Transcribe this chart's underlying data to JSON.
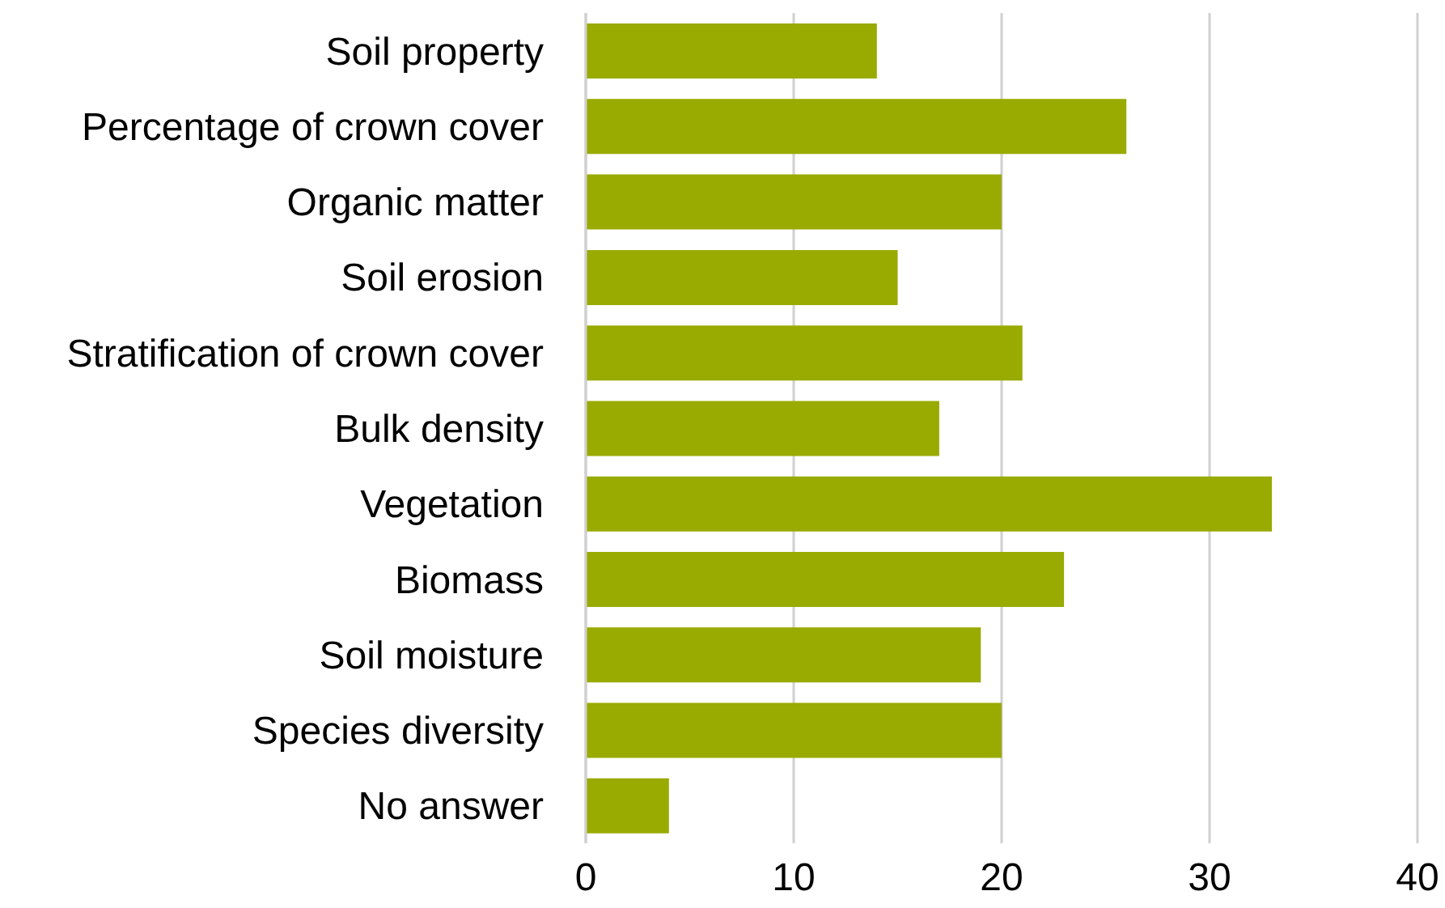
{
  "chart_data": {
    "type": "bar",
    "orientation": "horizontal",
    "categories": [
      "Soil property",
      "Percentage of crown cover",
      "Organic matter",
      "Soil erosion",
      "Stratification of crown cover",
      "Bulk density",
      "Vegetation",
      "Biomass",
      "Soil moisture",
      "Species diversity",
      "No answer"
    ],
    "values": [
      14,
      26,
      20,
      15,
      21,
      17,
      33,
      23,
      19,
      20,
      4
    ],
    "color": "#99aa00",
    "xlim": [
      0,
      40
    ],
    "xticks": [
      0,
      10,
      20,
      30,
      40
    ],
    "grid": "x",
    "legend": false
  }
}
